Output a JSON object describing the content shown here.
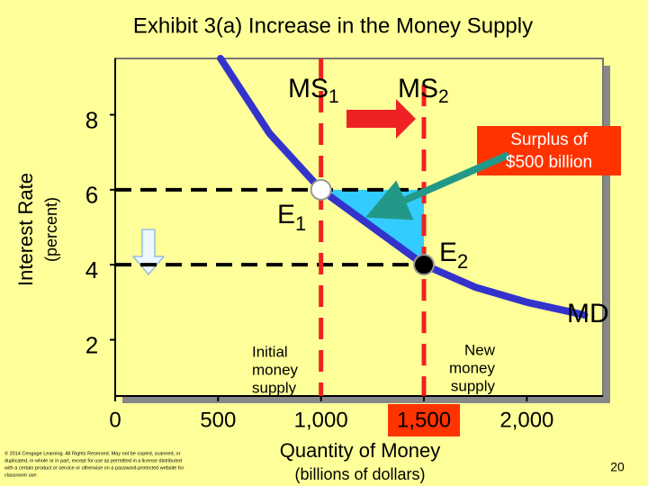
{
  "chart_data": {
    "type": "line",
    "title": "Exhibit 3(a) Increase in the Money Supply",
    "y_label": "Interest Rate",
    "y_sublabel": "(percent)",
    "x_label": "Quantity of Money",
    "x_sublabel": "(billions of dollars)",
    "xlim": [
      0,
      2370
    ],
    "ylim": [
      0.5,
      9.5
    ],
    "xticks": [
      0,
      500,
      {
        "value": 1000,
        "label": "1,000"
      },
      {
        "value": 1500,
        "label": "1,500"
      },
      {
        "value": 2000,
        "label": "2,000"
      }
    ],
    "yticks": [
      2,
      4,
      6,
      8
    ],
    "series": [
      {
        "name": "MD",
        "color": "#3333cc",
        "x": [
          512,
          750,
          1000,
          1250,
          1500,
          1750,
          2000,
          2280
        ],
        "values": [
          9.5,
          7.5,
          6,
          5,
          4,
          3.4,
          3,
          2.66
        ]
      },
      {
        "name": "MS",
        "subscript": "1",
        "color": "#ee2222",
        "x": [
          1000,
          1000
        ],
        "values": [
          9.5,
          0.5
        ]
      },
      {
        "name": "MS",
        "subscript": "2",
        "color": "#ee2222",
        "x": [
          1500,
          1500
        ],
        "values": [
          8.8,
          0.5
        ]
      }
    ],
    "points": [
      {
        "label": "E",
        "subscript": "1",
        "x": 1000,
        "y": 6,
        "color": "#ffffff"
      },
      {
        "label": "E",
        "subscript": "2",
        "x": 1500,
        "y": 4,
        "color": "#000000"
      }
    ],
    "surplus_label": [
      "Surplus of",
      "$500 billion"
    ],
    "initial_label": [
      "Initial",
      "money",
      "supply"
    ],
    "new_label": [
      "New",
      "money",
      "supply"
    ],
    "copyright": [
      "© 2014 Cengage Learning. All Rights Reserved. May not be copied, scanned, or",
      "duplicated, in whole or in part, except for use as permitted in a license distributed",
      "with a certain product or service or otherwise on a password-protected website for",
      "classroom use."
    ],
    "page_number": "20"
  }
}
